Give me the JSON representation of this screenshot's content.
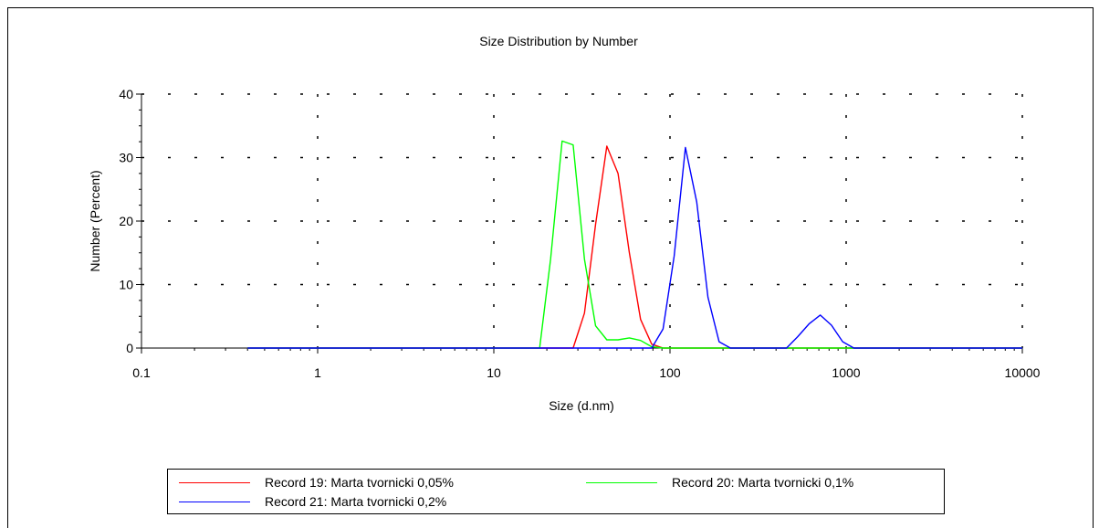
{
  "chart_data": {
    "type": "line",
    "title": "Size Distribution by Number",
    "xlabel": "Size (d.nm)",
    "ylabel": "Number (Percent)",
    "xscale": "log",
    "xlim": [
      0.1,
      10000
    ],
    "ylim": [
      0,
      40
    ],
    "xticks": [
      0.1,
      1,
      10,
      100,
      1000,
      10000
    ],
    "xtick_labels": [
      "0.1",
      "1",
      "10",
      "100",
      "1000",
      "10000"
    ],
    "yticks": [
      0,
      10,
      20,
      30,
      40
    ],
    "ytick_labels": [
      "0",
      "10",
      "20",
      "30",
      "40"
    ],
    "grid": true,
    "legend_position": "bottom",
    "series": [
      {
        "name": "Record 19: Marta tvornicki 0,05%",
        "color": "#ff0000",
        "x": [
          0.4,
          28.2,
          32.7,
          37.8,
          43.8,
          50.7,
          58.8,
          68.1,
          78.8,
          91.3,
          10000
        ],
        "y": [
          0,
          0,
          5.5,
          19.5,
          31.8,
          27.5,
          15.0,
          4.5,
          0.6,
          0,
          0
        ]
      },
      {
        "name": "Record 20: Marta tvornicki 0,1%",
        "color": "#00ff00",
        "x": [
          0.4,
          18.2,
          21.0,
          24.4,
          28.2,
          32.7,
          37.8,
          43.8,
          50.7,
          58.8,
          68.1,
          78.8,
          91.3,
          10000
        ],
        "y": [
          0,
          0,
          14.0,
          32.6,
          32.0,
          14.0,
          3.5,
          1.3,
          1.3,
          1.6,
          1.2,
          0.2,
          0,
          0
        ]
      },
      {
        "name": "Record 21: Marta tvornicki 0,2%",
        "color": "#0000ff",
        "x": [
          0.4,
          78.8,
          91.3,
          105.7,
          122.4,
          141.8,
          164.2,
          190.1,
          220.2,
          458.7,
          531.2,
          615.1,
          712.4,
          825.0,
          955.4,
          1106.0,
          10000
        ],
        "y": [
          0,
          0,
          3.0,
          14.5,
          31.6,
          23.0,
          8.0,
          1.0,
          0,
          0,
          1.8,
          3.8,
          5.2,
          3.6,
          1.0,
          0,
          0
        ]
      }
    ]
  }
}
